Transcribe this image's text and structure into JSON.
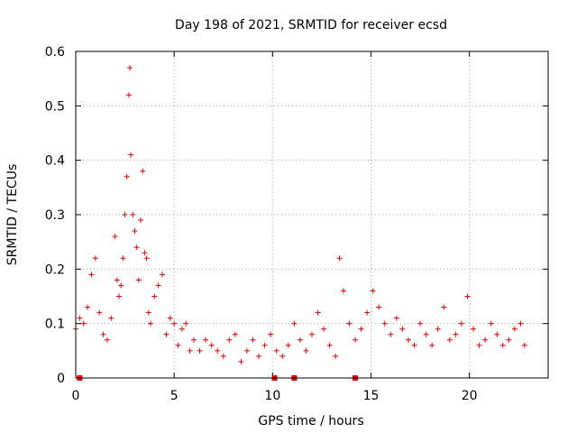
{
  "chart_data": {
    "type": "scatter",
    "title": "Day 198 of 2021, SRMTID for receiver ecsd",
    "xlabel": "GPS time / hours",
    "ylabel": "SRMTID / TECUs",
    "xlim": [
      0,
      24
    ],
    "ylim": [
      0,
      0.6
    ],
    "xticks": [
      0,
      5,
      10,
      15,
      20
    ],
    "yticks": [
      0,
      0.1,
      0.2,
      0.3,
      0.4,
      0.5,
      0.6
    ],
    "grid": true,
    "marker": "+",
    "color": "#e00000",
    "series": [
      {
        "name": "SRMTID",
        "x": [
          0.0,
          0.2,
          0.4,
          0.6,
          0.8,
          1.0,
          1.2,
          1.4,
          1.6,
          1.8,
          2.0,
          2.1,
          2.2,
          2.3,
          2.4,
          2.5,
          2.6,
          2.7,
          2.75,
          2.8,
          2.9,
          3.0,
          3.1,
          3.2,
          3.3,
          3.4,
          3.5,
          3.6,
          3.7,
          3.8,
          4.0,
          4.2,
          4.4,
          4.6,
          4.8,
          5.0,
          5.2,
          5.4,
          5.6,
          5.8,
          6.0,
          6.3,
          6.6,
          6.9,
          7.2,
          7.5,
          7.8,
          8.1,
          8.4,
          8.7,
          9.0,
          9.3,
          9.6,
          9.9,
          10.2,
          10.5,
          10.8,
          11.1,
          11.4,
          11.7,
          12.0,
          12.3,
          12.6,
          12.9,
          13.2,
          13.4,
          13.6,
          13.9,
          14.2,
          14.5,
          14.8,
          15.1,
          15.4,
          15.7,
          16.0,
          16.3,
          16.6,
          16.9,
          17.2,
          17.5,
          17.8,
          18.1,
          18.4,
          18.7,
          19.0,
          19.3,
          19.6,
          19.9,
          20.2,
          20.5,
          20.8,
          21.1,
          21.4,
          21.7,
          22.0,
          22.3,
          22.6,
          22.8
        ],
        "y": [
          0.09,
          0.11,
          0.1,
          0.13,
          0.19,
          0.22,
          0.12,
          0.08,
          0.07,
          0.11,
          0.26,
          0.18,
          0.15,
          0.17,
          0.22,
          0.3,
          0.37,
          0.52,
          0.57,
          0.41,
          0.3,
          0.27,
          0.24,
          0.18,
          0.29,
          0.38,
          0.23,
          0.22,
          0.12,
          0.1,
          0.15,
          0.17,
          0.19,
          0.08,
          0.11,
          0.1,
          0.06,
          0.09,
          0.1,
          0.05,
          0.07,
          0.05,
          0.07,
          0.06,
          0.05,
          0.04,
          0.07,
          0.08,
          0.03,
          0.05,
          0.07,
          0.04,
          0.06,
          0.08,
          0.05,
          0.04,
          0.06,
          0.1,
          0.07,
          0.05,
          0.08,
          0.12,
          0.09,
          0.06,
          0.04,
          0.22,
          0.16,
          0.1,
          0.07,
          0.09,
          0.12,
          0.16,
          0.13,
          0.1,
          0.08,
          0.11,
          0.09,
          0.07,
          0.06,
          0.1,
          0.08,
          0.06,
          0.09,
          0.13,
          0.07,
          0.08,
          0.1,
          0.15,
          0.09,
          0.06,
          0.07,
          0.1,
          0.08,
          0.06,
          0.07,
          0.09,
          0.1,
          0.06
        ]
      }
    ],
    "flags_x": [
      0.2,
      10.1,
      11.1,
      14.2
    ],
    "flags_y": [
      0,
      0,
      0,
      0
    ]
  }
}
